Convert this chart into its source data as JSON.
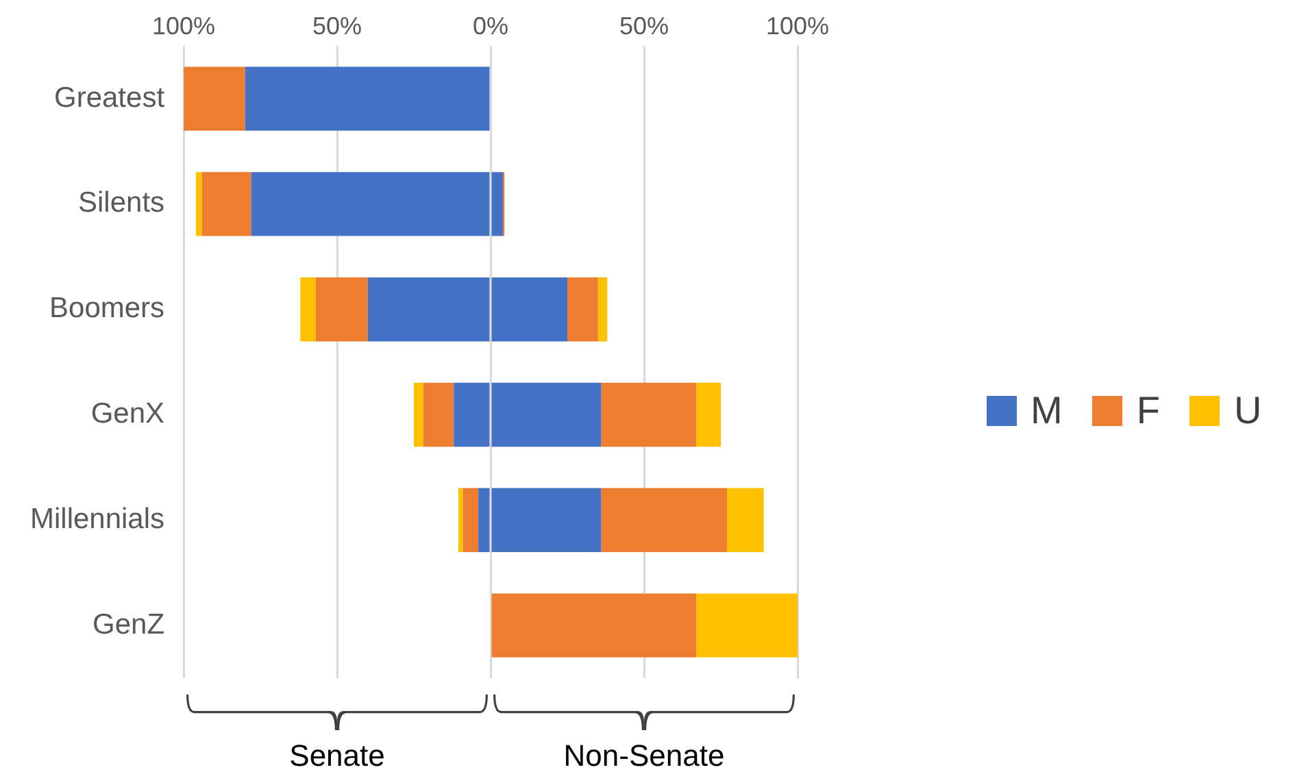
{
  "chart_data": {
    "type": "bar",
    "orientation": "horizontal",
    "stacked": true,
    "categories": [
      "Greatest",
      "Silents",
      "Boomers",
      "GenX",
      "Millennials",
      "GenZ"
    ],
    "series": [
      {
        "name": "M",
        "color": "#4472c4",
        "values": [
          -80,
          -78,
          -40,
          -12,
          -4,
          null
        ]
      },
      {
        "name": "F",
        "color": "#ed7d31",
        "values": [
          -20,
          -16,
          -17,
          -10,
          -5,
          null
        ]
      },
      {
        "name": "U",
        "color": "#ffc000",
        "values": [
          null,
          -2,
          -5,
          -3,
          -1.5,
          null
        ]
      },
      {
        "color": "#4472c4",
        "values": [
          null,
          4,
          25,
          36,
          36,
          null
        ]
      },
      {
        "color": "#ed7d31",
        "values": [
          null,
          0.5,
          10,
          31,
          41,
          67
        ]
      },
      {
        "color": "#ffc000",
        "values": [
          null,
          null,
          3,
          8,
          12,
          33
        ]
      }
    ],
    "xlim": [
      -100,
      100
    ],
    "xticks": [
      {
        "value": -100,
        "label": "100%"
      },
      {
        "value": -50,
        "label": "50%"
      },
      {
        "value": 0,
        "label": "0%"
      },
      {
        "value": 50,
        "label": "50%"
      },
      {
        "value": 100,
        "label": "100%"
      }
    ],
    "grid": "x",
    "legend": "right",
    "annotations": [
      "Senate",
      "Non-Senate"
    ]
  }
}
